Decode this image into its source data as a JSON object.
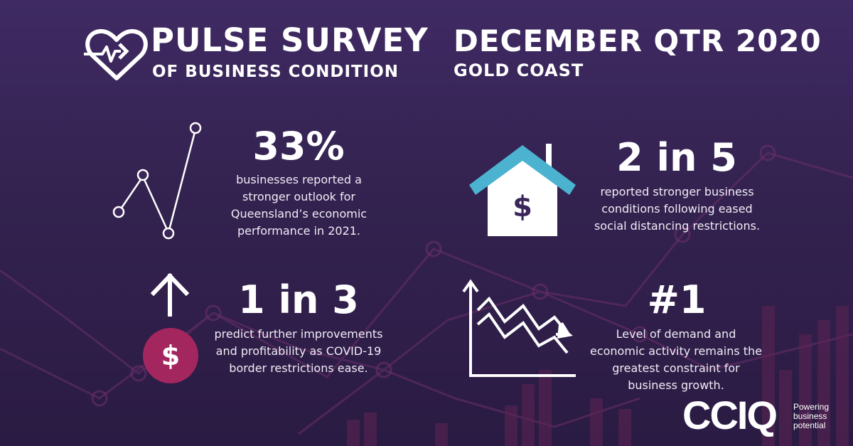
{
  "header": {
    "title": "PULSE SURVEY",
    "subtitle": "OF BUSINESS CONDITION",
    "period": "DECEMBER QTR 2020",
    "location": "GOLD COAST"
  },
  "stats": [
    {
      "value": "33%",
      "description": "businesses reported a stronger outlook for Queensland’s economic performance in 2021.",
      "icon": "line-chart-icon"
    },
    {
      "value": "2 in 5",
      "description": "reported stronger business conditions following eased social distancing restrictions.",
      "icon": "house-dollar-icon"
    },
    {
      "value": "1 in 3",
      "description": "predict further improvements and profitability as COVID-19 border restrictions ease.",
      "icon": "arrow-up-dollar-icon"
    },
    {
      "value": "#1",
      "description": "Level of demand and economic activity remains the greatest constraint for business growth.",
      "icon": "declining-chart-icon"
    }
  ],
  "icons": {
    "dollar_symbol": "$",
    "house_roof_color": "#4bb3cf",
    "dollar_circle_color": "#a3265f"
  },
  "brand": {
    "logo": "CCIQ",
    "tagline": "Powering business potential"
  }
}
